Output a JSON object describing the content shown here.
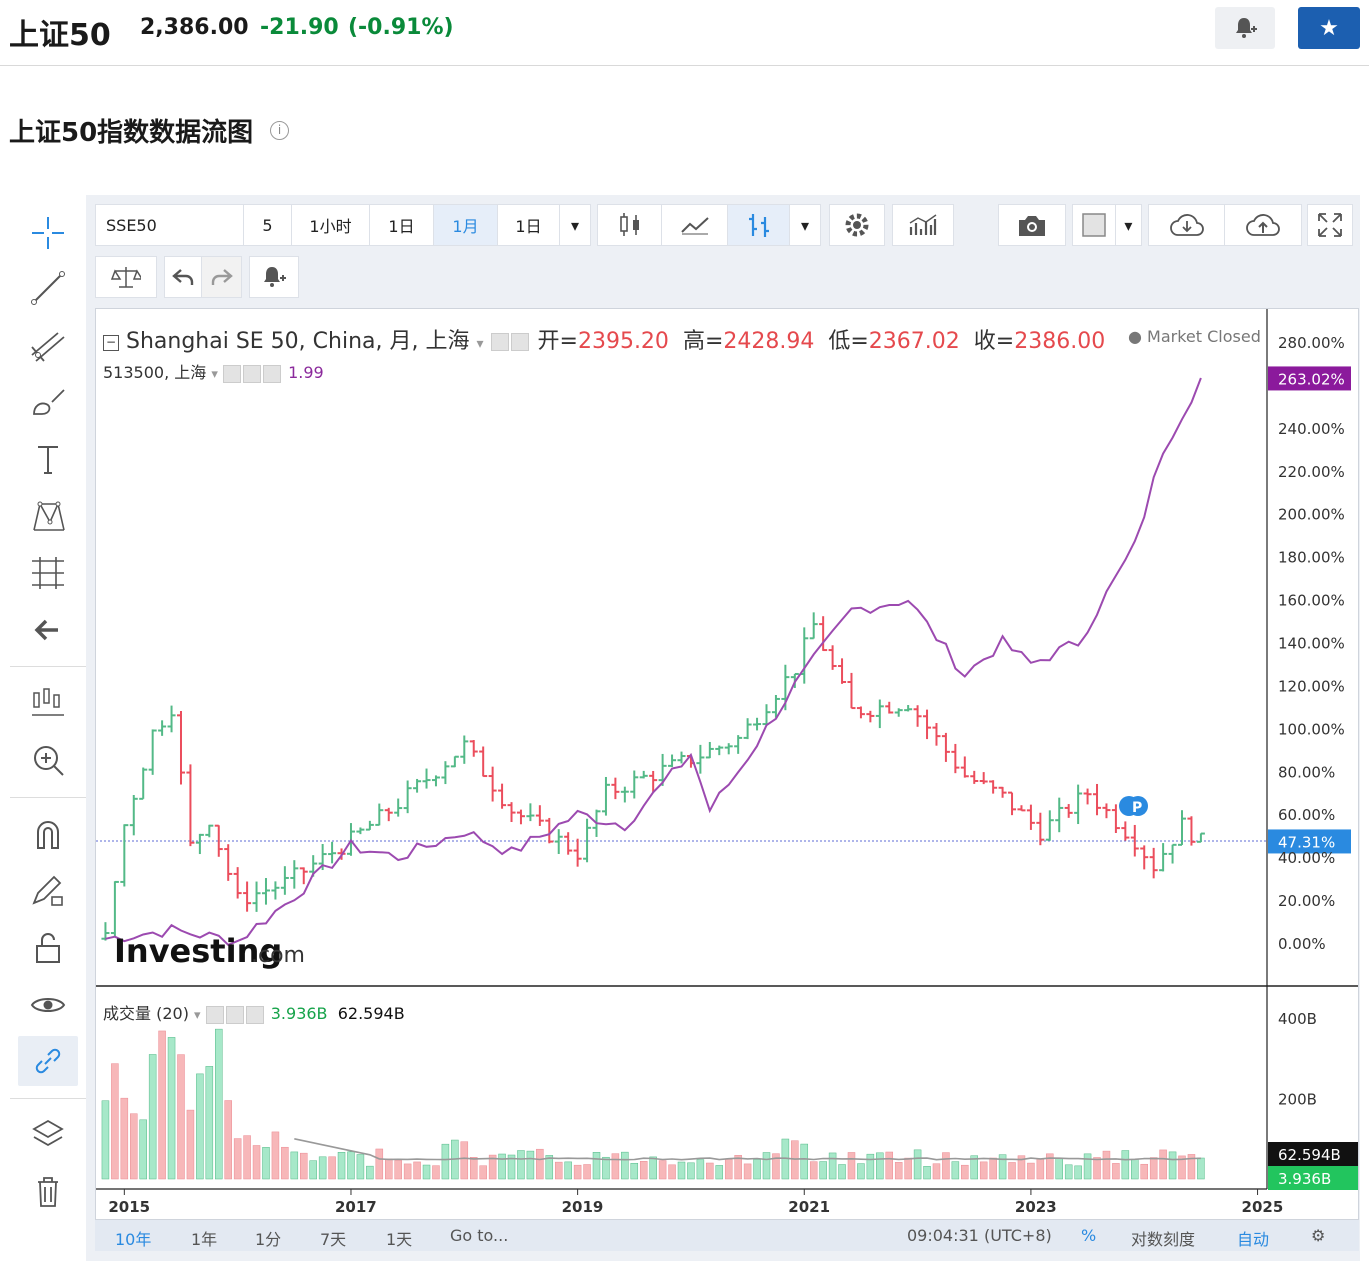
{
  "header": {
    "title": "上证50",
    "price": "2,386.00",
    "change": "-21.90",
    "change_pct": "(-0.91%)"
  },
  "subtitle": "上证50指数数据流图",
  "toolbar": {
    "symbol": "SSE50",
    "intervals": [
      "5",
      "1小时",
      "1日",
      "1月"
    ],
    "selected_interval": "1月",
    "interval_dropdown": "1日",
    "icons": [
      "candles-icon",
      "line-chart-icon",
      "bars-icon",
      "settings-icon",
      "indicators-icon",
      "camera-icon",
      "color-icon",
      "cloud-download-icon",
      "cloud-upload-icon",
      "fullscreen-icon"
    ]
  },
  "legend": {
    "main_title": "Shanghai SE 50, China, 月, 上海",
    "open_label": "开=",
    "open_value": "2395.20",
    "high_label": "高=",
    "high_value": "2428.94",
    "low_label": "低=",
    "low_value": "2367.02",
    "close_label": "收=",
    "close_value": "2386.00",
    "market_status": "Market Closed",
    "compare_symbol": "513500, 上海",
    "compare_value": "1.99",
    "volume_label": "成交量 (20)",
    "volume_value": "3.936B",
    "volume_ma": "62.594B"
  },
  "watermark": {
    "brand": "Investing",
    "suffix": ".com"
  },
  "price_axis": {
    "ticks": [
      "280.00%",
      "263.02%",
      "240.00%",
      "220.00%",
      "200.00%",
      "180.00%",
      "160.00%",
      "140.00%",
      "120.00%",
      "100.00%",
      "80.00%",
      "60.00%",
      "47.31%",
      "40.00%",
      "20.00%",
      "0.00%"
    ],
    "highlight_purple": "263.02%",
    "highlight_blue": "47.31%"
  },
  "volume_axis": {
    "ticks": [
      "400B",
      "200B"
    ],
    "label_dark": "62.594B",
    "label_green": "3.936B"
  },
  "x_axis": {
    "ticks": [
      "2015",
      "2017",
      "2019",
      "2021",
      "2023",
      "2025"
    ]
  },
  "bottom_bar": {
    "ranges": [
      "10年",
      "1年",
      "1分",
      "7天",
      "1天",
      "Go to..."
    ],
    "time": "09:04:31 (UTC+8)",
    "percent": "%",
    "log_scale": "对数刻度",
    "auto": "自动"
  },
  "colors": {
    "up": "#53b987",
    "down": "#eb4d5c",
    "compare_line": "#9c4ab0",
    "accent": "#2a8ae0"
  },
  "chart_data": {
    "type": "line",
    "x_range": [
      "2014-10",
      "2024-07"
    ],
    "ylim": [
      -5,
      290
    ],
    "series": [
      {
        "name": "Shanghai SE 50, China",
        "x": [
          "2014-11",
          "2015-01",
          "2015-04",
          "2015-06",
          "2015-08",
          "2015-10",
          "2016-01",
          "2016-06",
          "2017-01",
          "2017-06",
          "2018-01",
          "2018-06",
          "2019-01",
          "2019-04",
          "2019-12",
          "2020-06",
          "2020-12",
          "2021-02",
          "2021-06",
          "2021-12",
          "2022-06",
          "2022-10",
          "2023-02",
          "2023-07",
          "2023-12",
          "2024-02",
          "2024-05",
          "2024-07"
        ],
        "values": [
          2,
          55,
          98,
          110,
          45,
          58,
          20,
          28,
          48,
          65,
          92,
          62,
          42,
          70,
          84,
          95,
          128,
          148,
          108,
          112,
          78,
          68,
          52,
          70,
          48,
          36,
          55,
          47
        ]
      },
      {
        "name": "513500, 上海",
        "x": [
          "2014-11",
          "2015-06",
          "2016-01",
          "2016-06",
          "2017-01",
          "2017-06",
          "2018-01",
          "2018-06",
          "2019-01",
          "2019-06",
          "2020-01",
          "2020-03",
          "2020-06",
          "2020-12",
          "2021-06",
          "2021-12",
          "2022-06",
          "2022-10",
          "2023-01",
          "2023-06",
          "2023-12",
          "2024-03",
          "2024-07"
        ],
        "values": [
          2,
          6,
          1,
          18,
          45,
          40,
          52,
          42,
          60,
          55,
          88,
          62,
          80,
          120,
          155,
          160,
          125,
          140,
          130,
          140,
          185,
          230,
          263
        ]
      }
    ],
    "volume": {
      "ma_value": "62.594B",
      "last_value": "3.936B",
      "yticks": [
        200,
        400
      ]
    }
  }
}
